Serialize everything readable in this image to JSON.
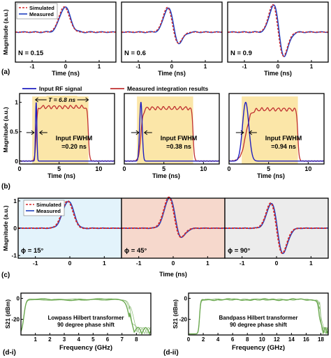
{
  "colors": {
    "simulated": "#d62728",
    "measured": "#1f3fbf",
    "input_rf": "#2020c0",
    "integration": "#c03030",
    "shade_yellow": "#fbe6a8",
    "shade_blue": "#e3f3fb",
    "shade_red": "#f6d8cc",
    "shade_grey": "#ececec",
    "green": "#6aa84f"
  },
  "chart_data": [
    {
      "id": "a",
      "type": "line",
      "panel_label": "(a)",
      "ylabel": "Magnitude (a.u.)",
      "xlabel": "Time (ns)",
      "xlim": [
        -1.5,
        1.5
      ],
      "ylim": [
        -1.05,
        1.05
      ],
      "xticks": [
        "-1",
        "0",
        "1"
      ],
      "legend": [
        "Simulated",
        "Measured"
      ],
      "legend_position": "top-left",
      "subplots": [
        {
          "annotation": "N = 0.15",
          "N": 0.15
        },
        {
          "annotation": "N = 0.6",
          "N": 0.6
        },
        {
          "annotation": "N = 0.9",
          "N": 0.9
        }
      ]
    },
    {
      "id": "b",
      "type": "line",
      "panel_label": "(b)",
      "ylabel": "Magnitude (a.u.)",
      "xlabel": "Time (ns)",
      "xlim": [
        0,
        12
      ],
      "ylim": [
        -0.05,
        1.15
      ],
      "yticks": [
        "0",
        "0.5",
        "1"
      ],
      "xticks": [
        "0",
        "5",
        "10"
      ],
      "legend": [
        "Input RF signal",
        "Measured integration results"
      ],
      "legend_position": "top",
      "window_annotation": "T = 6.8 ns",
      "subplots": [
        {
          "annotation": [
            "Input FWHM",
            "=0.20 ns"
          ],
          "fwhm_ns": 0.2
        },
        {
          "annotation": [
            "Input FWHM",
            "=0.38 ns"
          ],
          "fwhm_ns": 0.38
        },
        {
          "annotation": [
            "Input FWHM",
            "=0.94 ns"
          ],
          "fwhm_ns": 0.94
        }
      ]
    },
    {
      "id": "c",
      "type": "line",
      "panel_label": "(c)",
      "ylabel": "Magnitude (a.u.)",
      "xlabel": "Time (ns)",
      "xlim": [
        -1.5,
        1.5
      ],
      "ylim": [
        -1.1,
        1.1
      ],
      "yticks": [
        "-1",
        "0",
        "1"
      ],
      "xticks": [
        "-1",
        "0",
        "1"
      ],
      "legend": [
        "Simulated",
        "Measured"
      ],
      "legend_position": "top-left",
      "subplots": [
        {
          "annotation": "ϕ = 15°",
          "phi_deg": 15
        },
        {
          "annotation": "ϕ = 45°",
          "phi_deg": 45
        },
        {
          "annotation": "ϕ = 90°",
          "phi_deg": 90
        }
      ]
    },
    {
      "id": "d-i",
      "type": "line",
      "panel_label": "(d-i)",
      "ylabel": "S21 (dBm)",
      "xlabel": "Frequency (GHz)",
      "xlim": [
        0,
        9
      ],
      "ylim": [
        -35,
        5
      ],
      "yticks": [
        "0",
        "-20"
      ],
      "xticks": [
        "1",
        "2",
        "3",
        "4",
        "5",
        "6",
        "7",
        "8"
      ],
      "annotation": [
        "Lowpass Hilbert transformer",
        "90 degree phase shift"
      ],
      "passband_ghz": [
        0.2,
        7.5
      ]
    },
    {
      "id": "d-ii",
      "type": "line",
      "panel_label": "(d-ii)",
      "ylabel": "S21 (dBm)",
      "xlabel": "Frequency (GHz)",
      "xlim": [
        0,
        19
      ],
      "ylim": [
        -35,
        5
      ],
      "yticks": [
        "0",
        "-20"
      ],
      "xticks": [
        "0",
        "2",
        "4",
        "6",
        "8",
        "10",
        "12",
        "14",
        "16",
        "18"
      ],
      "annotation": [
        "Bandpass Hilbert transformer",
        "90 degree phase shift"
      ],
      "passband_ghz": [
        1.5,
        17.8
      ]
    }
  ]
}
